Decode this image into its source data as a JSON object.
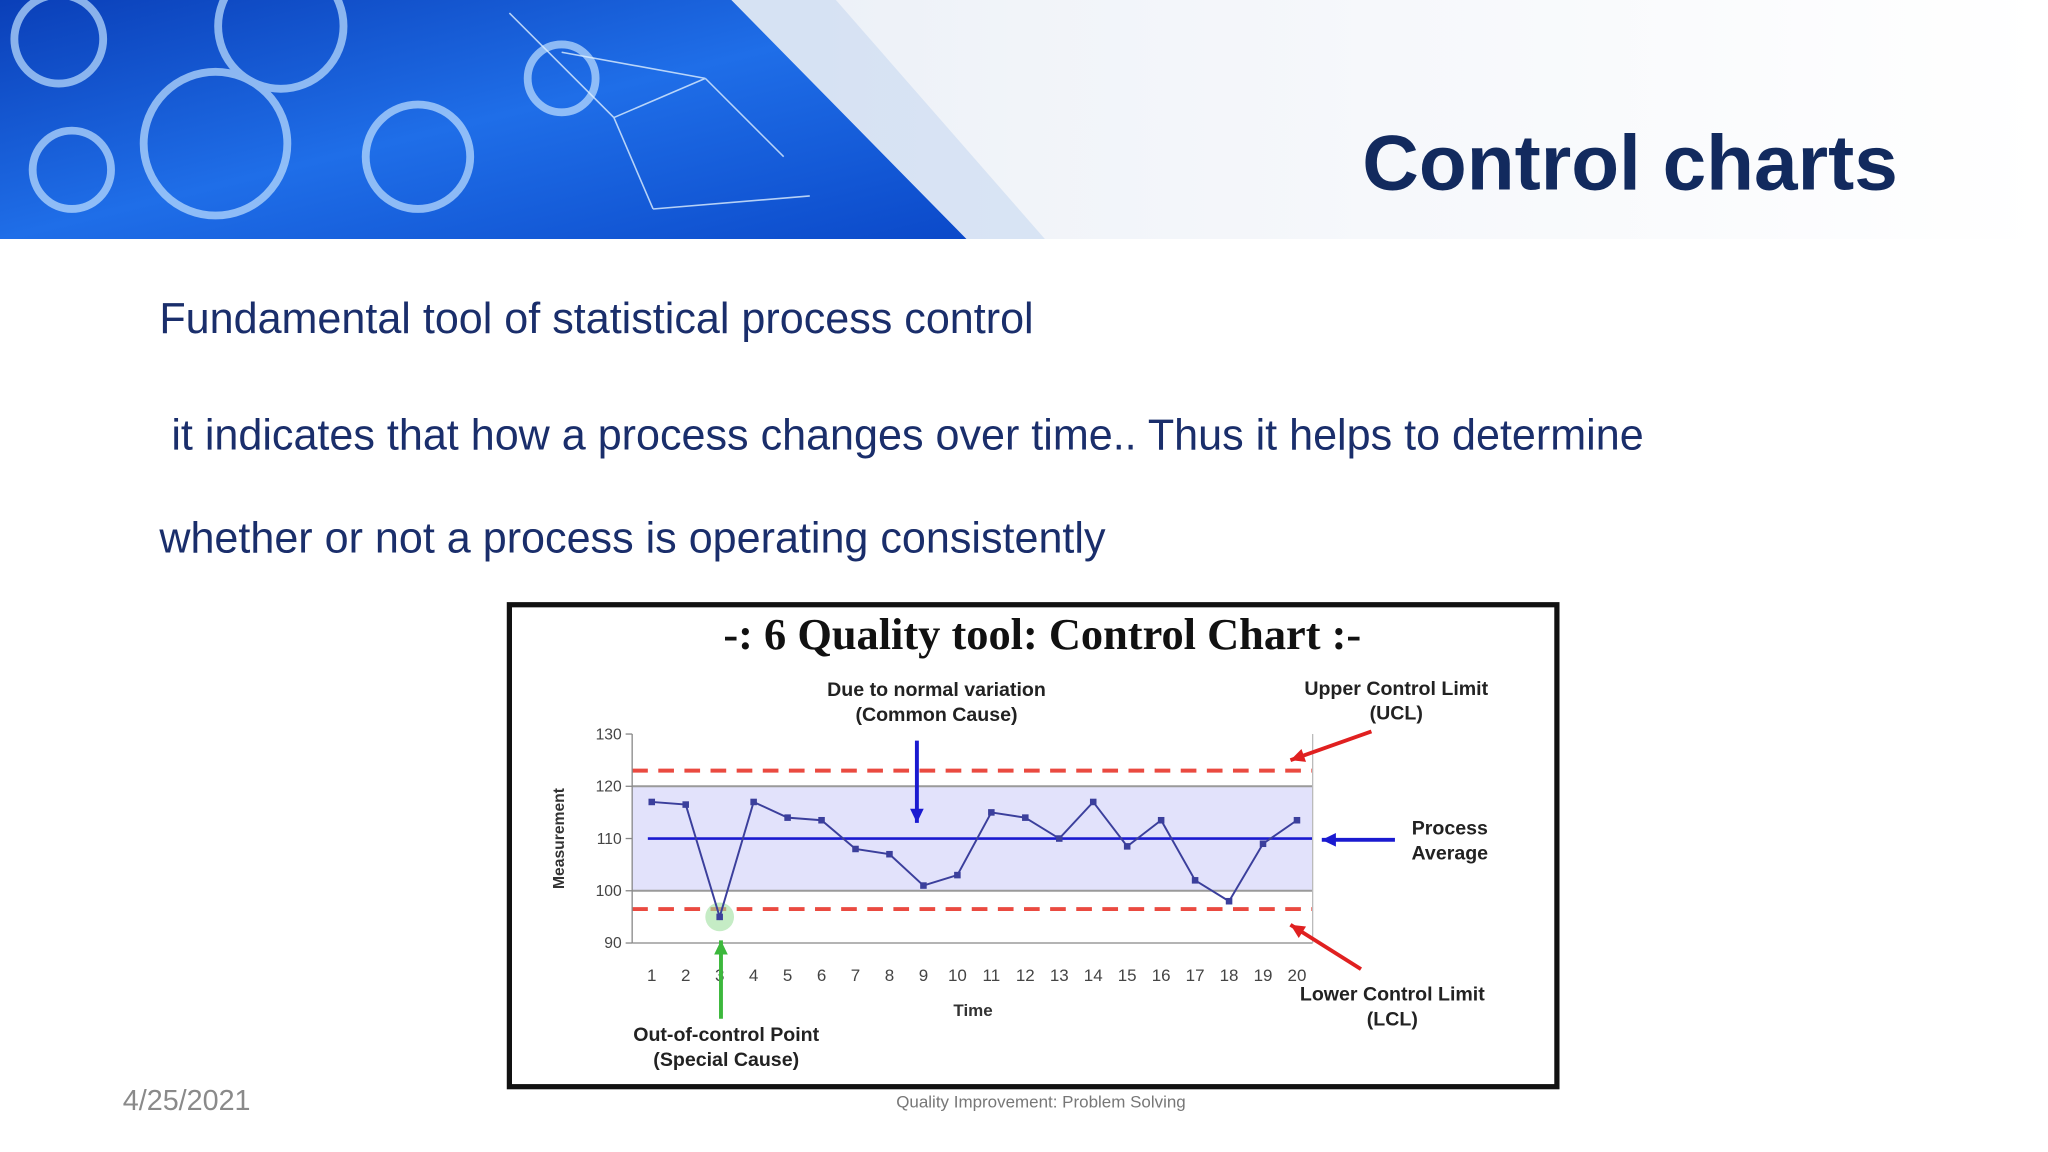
{
  "header": {
    "title": "Control charts"
  },
  "body": {
    "lines": [
      "Fundamental tool of statistical process control",
      " it indicates that how a process changes over time.. Thus it helps to determine",
      "whether or not a process is operating consistently"
    ]
  },
  "footer": {
    "date": "4/25/2021",
    "caption": "Quality Improvement: Problem Solving"
  },
  "chart_data": {
    "type": "line",
    "title": "-: 6 Quality tool: Control Chart :-",
    "x_label": "Time",
    "y_label": "Measurement",
    "categories": [
      "1",
      "2",
      "3",
      "4",
      "5",
      "6",
      "7",
      "8",
      "9",
      "10",
      "11",
      "12",
      "13",
      "14",
      "15",
      "16",
      "17",
      "18",
      "19",
      "20"
    ],
    "values": [
      117,
      116.5,
      95,
      117,
      114,
      113.5,
      108,
      107,
      101,
      103,
      115,
      114,
      110,
      117,
      108.5,
      113.5,
      102,
      98,
      109,
      113.5
    ],
    "color": "#3b3f9c",
    "ylim": [
      90,
      130
    ],
    "yticks": [
      90,
      100,
      110,
      120,
      130
    ],
    "ucl": 123,
    "lcl": 96.5,
    "average": 110,
    "band": [
      100,
      120
    ],
    "annotations": [
      "Due to normal variation",
      "(Common Cause)",
      "Upper Control Limit",
      "(UCL)",
      "Process",
      "Average",
      "Lower Control Limit",
      "(LCL)",
      "Out-of-control Point",
      "(Special Cause)"
    ]
  }
}
